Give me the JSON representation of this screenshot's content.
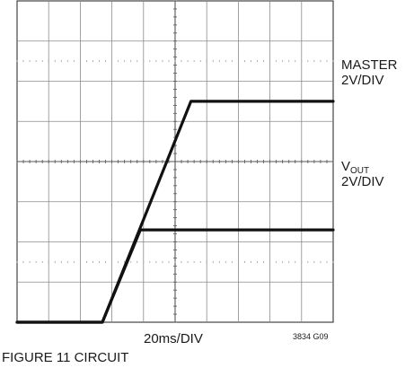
{
  "chart_data": {
    "type": "line",
    "grid": true,
    "divisions": {
      "x": 10,
      "y": 8
    },
    "xlabel": "20ms/DIV",
    "figure_id": "3834 G09",
    "caption": "FIGURE 11 CIRCUIT",
    "series": [
      {
        "name": "MASTER",
        "scale": "2V/DIV",
        "x_div": [
          0,
          2.7,
          5.5,
          10
        ],
        "y_div": [
          -4.0,
          -4.0,
          1.5,
          1.5
        ]
      },
      {
        "name": "V",
        "name_sub": "OUT",
        "scale": "2V/DIV",
        "x_div": [
          0,
          2.7,
          3.9,
          10
        ],
        "y_div": [
          -4.0,
          -4.0,
          -1.7,
          -1.7
        ]
      }
    ]
  }
}
